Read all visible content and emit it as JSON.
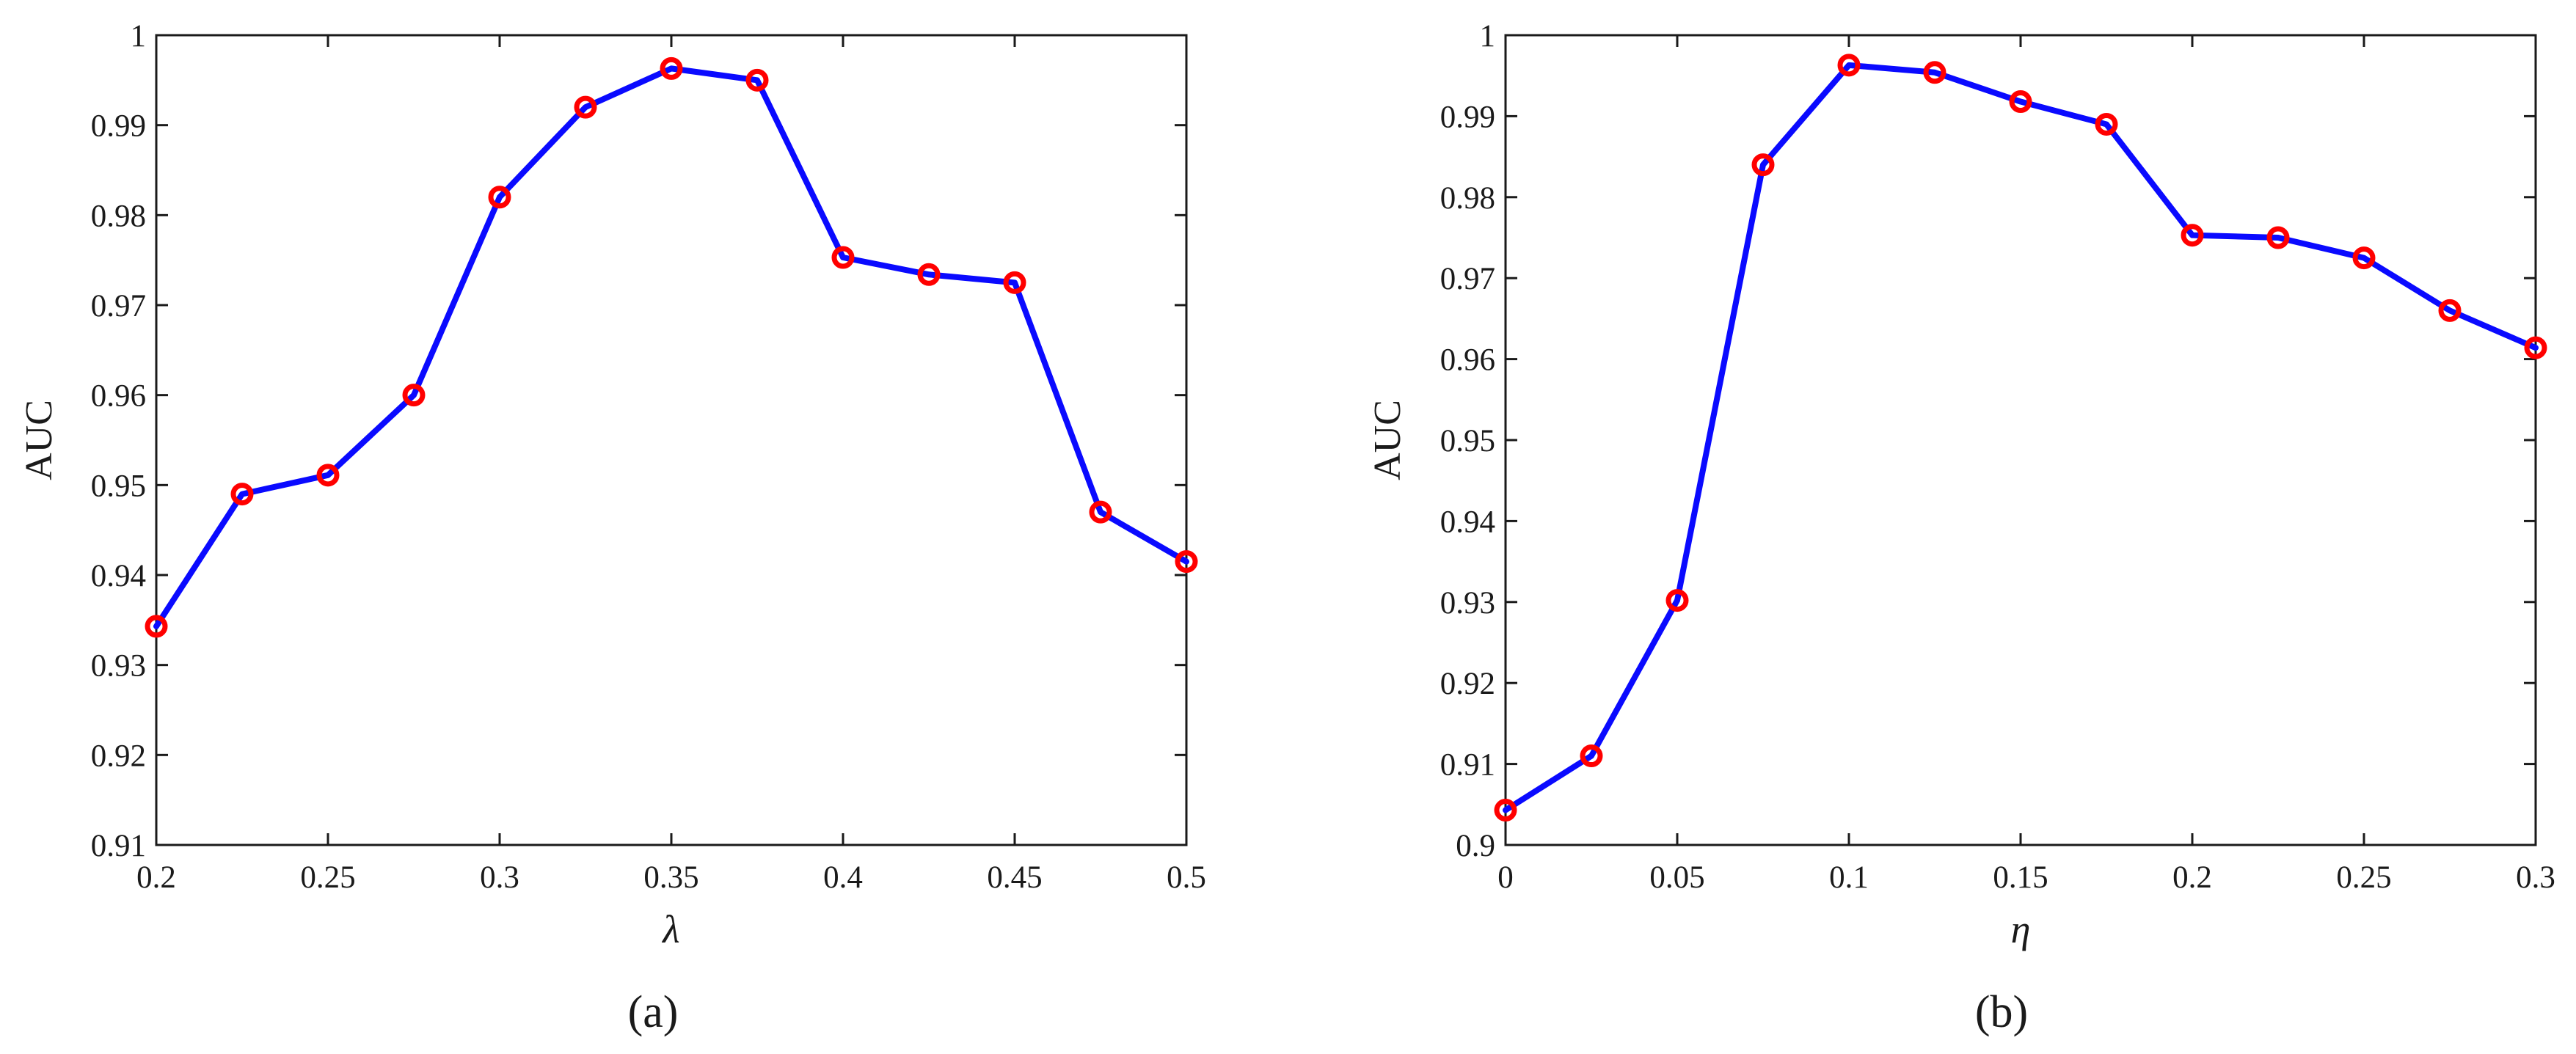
{
  "colors": {
    "line": "#0a0aff",
    "marker": "#ff0000",
    "axes": "#1a1a1a",
    "background": "#ffffff"
  },
  "chart_data": [
    {
      "id": "a",
      "type": "line",
      "caption": "(a)",
      "xlabel": "λ",
      "ylabel": "AUC",
      "xlim": [
        0.2,
        0.5
      ],
      "ylim": [
        0.91,
        1.0
      ],
      "xticks": [
        0.2,
        0.25,
        0.3,
        0.35,
        0.4,
        0.45,
        0.5
      ],
      "xtick_labels": [
        "0.2",
        "0.25",
        "0.3",
        "0.35",
        "0.4",
        "0.45",
        "0.5"
      ],
      "yticks": [
        0.91,
        0.92,
        0.93,
        0.94,
        0.95,
        0.96,
        0.97,
        0.98,
        0.99,
        1.0
      ],
      "ytick_labels": [
        "0.91",
        "0.92",
        "0.93",
        "0.94",
        "0.95",
        "0.96",
        "0.97",
        "0.98",
        "0.99",
        "1"
      ],
      "marker": "circle",
      "x": [
        0.2,
        0.225,
        0.25,
        0.275,
        0.3,
        0.325,
        0.35,
        0.375,
        0.4,
        0.425,
        0.45,
        0.475,
        0.5
      ],
      "y": [
        0.9343,
        0.949,
        0.9511,
        0.96,
        0.982,
        0.992,
        0.9963,
        0.995,
        0.9753,
        0.9734,
        0.9725,
        0.947,
        0.9415
      ]
    },
    {
      "id": "b",
      "type": "line",
      "caption": "(b)",
      "xlabel": "η",
      "ylabel": "AUC",
      "xlim": [
        0,
        0.3
      ],
      "ylim": [
        0.9,
        1.0
      ],
      "xticks": [
        0,
        0.05,
        0.1,
        0.15,
        0.2,
        0.25,
        0.3
      ],
      "xtick_labels": [
        "0",
        "0.05",
        "0.1",
        "0.15",
        "0.2",
        "0.25",
        "0.3"
      ],
      "yticks": [
        0.9,
        0.91,
        0.92,
        0.93,
        0.94,
        0.95,
        0.96,
        0.97,
        0.98,
        0.99,
        1.0
      ],
      "ytick_labels": [
        "0.9",
        "0.91",
        "0.92",
        "0.93",
        "0.94",
        "0.95",
        "0.96",
        "0.97",
        "0.98",
        "0.99",
        "1"
      ],
      "marker": "circle",
      "x": [
        0,
        0.025,
        0.05,
        0.075,
        0.1,
        0.125,
        0.15,
        0.175,
        0.2,
        0.225,
        0.25,
        0.275,
        0.3
      ],
      "y": [
        0.9043,
        0.911,
        0.9302,
        0.984,
        0.9963,
        0.9954,
        0.9918,
        0.989,
        0.9753,
        0.975,
        0.9725,
        0.966,
        0.9614
      ]
    }
  ]
}
